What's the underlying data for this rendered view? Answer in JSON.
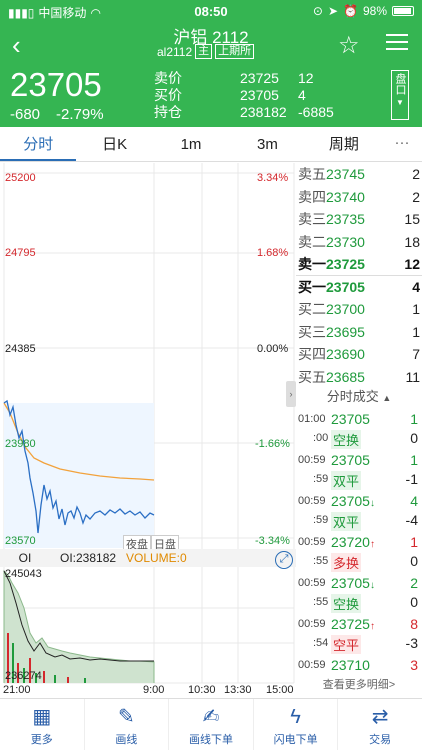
{
  "status": {
    "carrier": "中国移动",
    "time": "08:50",
    "battery": "98%"
  },
  "header": {
    "title": "沪铝 2112",
    "code": "al2112",
    "tag_main": "主",
    "exchange": "上期所"
  },
  "quote": {
    "price": "23705",
    "change": "-680",
    "change_pct": "-2.79%",
    "labels": [
      "卖价",
      "买价",
      "持仓"
    ],
    "values": [
      "23725",
      "23705",
      "238182"
    ],
    "values2": [
      "12",
      "4",
      "-6885"
    ],
    "pankou": "盘口"
  },
  "tabs": [
    "分时",
    "日K",
    "1m",
    "3m",
    "周期"
  ],
  "tabs_more": "···",
  "chart": {
    "y_left": [
      "25200",
      "24795",
      "24385",
      "23980",
      "23570"
    ],
    "y_right": [
      "3.34%",
      "1.68%",
      "0.00%",
      "-1.66%",
      "-3.34%"
    ],
    "session_tags": [
      "夜盘",
      "日盘"
    ],
    "oi_label": "OI",
    "oi_value": "OI:238182",
    "volume_label": "VOLUME:0",
    "oi_max": "245043",
    "oi_min": "236274",
    "x_labels": [
      "21:00",
      "9:00",
      "10:30",
      "13:30",
      "15:00"
    ]
  },
  "orderbook": [
    {
      "label": "卖五",
      "price": "23745",
      "qty": "2"
    },
    {
      "label": "卖四",
      "price": "23740",
      "qty": "2"
    },
    {
      "label": "卖三",
      "price": "23735",
      "qty": "15"
    },
    {
      "label": "卖二",
      "price": "23730",
      "qty": "18"
    },
    {
      "label": "卖一",
      "price": "23725",
      "qty": "12"
    },
    {
      "label": "买一",
      "price": "23705",
      "qty": "4"
    },
    {
      "label": "买二",
      "price": "23700",
      "qty": "1"
    },
    {
      "label": "买三",
      "price": "23695",
      "qty": "1"
    },
    {
      "label": "买四",
      "price": "23690",
      "qty": "7"
    },
    {
      "label": "买五",
      "price": "23685",
      "qty": "11"
    }
  ],
  "trades_title": "分时成交",
  "trades": [
    {
      "t1": "01:00",
      "t2": ":00",
      "price": "23705",
      "arrow": "",
      "type": "空换",
      "q1": "1",
      "q2": "0"
    },
    {
      "t1": "00:59",
      "t2": ":59",
      "price": "23705",
      "arrow": "",
      "type": "双平",
      "q1": "1",
      "q2": "-1"
    },
    {
      "t1": "00:59",
      "t2": ":59",
      "price": "23705",
      "arrow": "↓",
      "type": "双平",
      "q1": "4",
      "q2": "-4"
    },
    {
      "t1": "00:59",
      "t2": ":55",
      "price": "23720",
      "arrow": "↑",
      "type": "多换",
      "q1": "1",
      "q2": "0"
    },
    {
      "t1": "00:59",
      "t2": ":55",
      "price": "23705",
      "arrow": "↓",
      "type": "空换",
      "q1": "2",
      "q2": "0"
    },
    {
      "t1": "00:59",
      "t2": ":54",
      "price": "23725",
      "arrow": "↑",
      "type": "空平",
      "q1": "8",
      "q2": "-3"
    },
    {
      "t1": "00:59",
      "t2": "",
      "price": "23710",
      "arrow": "",
      "type": "",
      "q1": "3",
      "q2": ""
    }
  ],
  "more_details": "查看更多明细>",
  "bottom": [
    "更多",
    "画线",
    "画线下单",
    "闪电下单",
    "交易"
  ]
}
